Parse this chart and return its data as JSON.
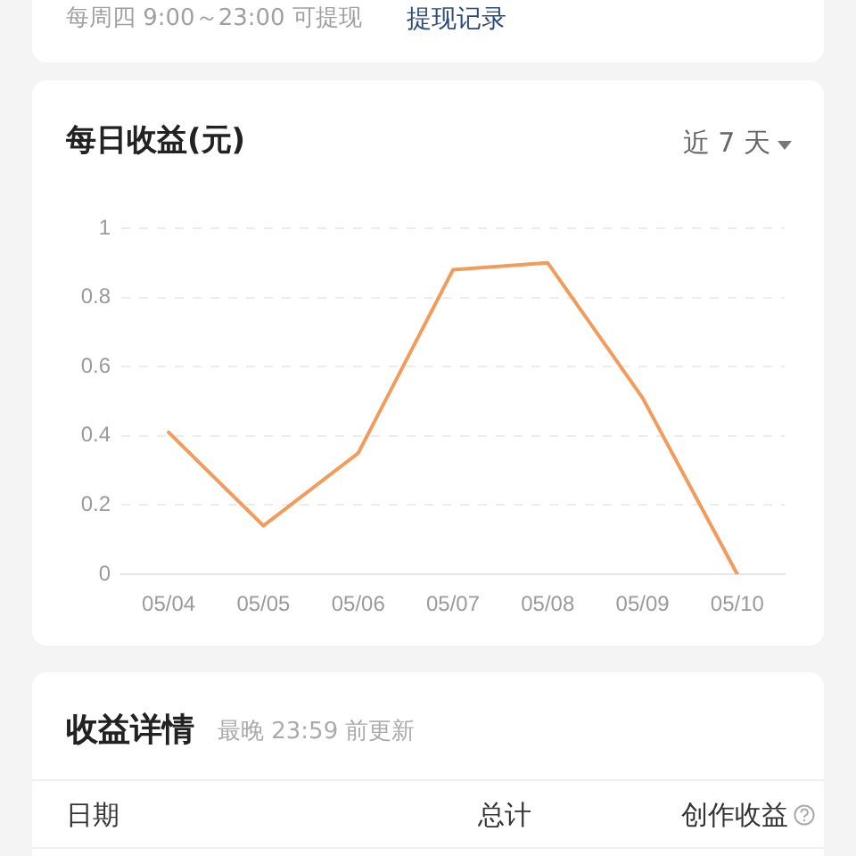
{
  "chart_data": {
    "type": "line",
    "title": "每日收益(元)",
    "categories": [
      "05/04",
      "05/05",
      "05/06",
      "05/07",
      "05/08",
      "05/09",
      "05/10"
    ],
    "values": [
      0.41,
      0.14,
      0.35,
      0.88,
      0.9,
      0.51,
      0
    ],
    "color": "#f39b5b",
    "ylim": [
      0,
      1
    ],
    "yticks": [
      0,
      0.2,
      0.4,
      0.6,
      0.8,
      1
    ],
    "grid": "y",
    "annotations": [
      "每周四 9:00～23:00 可提现",
      "提现记录",
      "近 7 天",
      "收益详情",
      "最晚 23:59 前更新",
      "日期",
      "总计",
      "创作收益"
    ]
  }
}
